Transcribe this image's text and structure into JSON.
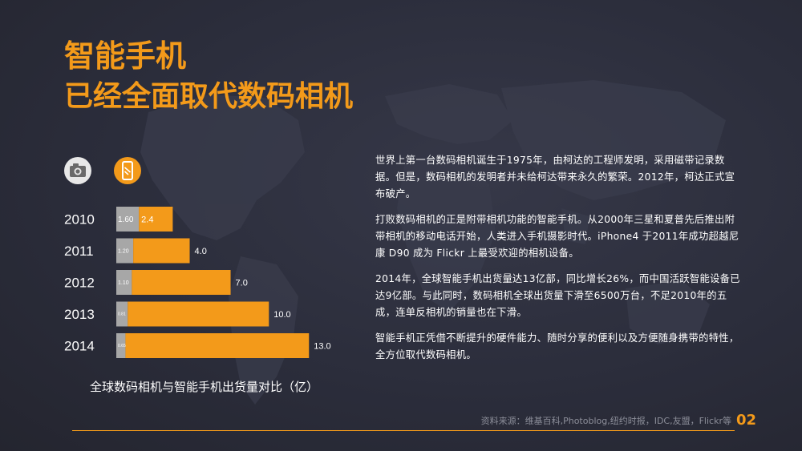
{
  "slide": {
    "title": "智能手机",
    "subtitle": "已经全面取代数码相机",
    "page_number": "02",
    "source": "资料来源：维基百科,Photoblog,纽约时报，IDC,友盟，Flickr等"
  },
  "icons": {
    "camera": "camera-icon",
    "smartphone": "smartphone-icon"
  },
  "colors": {
    "accent": "#f39a1a",
    "camera_bar": "#a7a7a7",
    "background": "#2b2d3b"
  },
  "paragraphs": [
    "世界上第一台数码相机诞生于1975年，由柯达的工程师发明，采用磁带记录数据。但是，数码相机的发明者并未给柯达带来永久的繁荣。2012年，柯达正式宣布破产。",
    "打败数码相机的正是附带相机功能的智能手机。从2000年三星和夏普先后推出附带相机的移动电话开始，人类进入手机摄影时代。iPhone4 于2011年成功超越尼康 D90 成为 Flickr 上最受欢迎的相机设备。",
    "2014年，全球智能手机出货量达13亿部，同比增长26%，而中国活跃智能设备已达9亿部。与此同时，数码相机全球出货量下滑至6500万台，不足2010年的五成，连单反相机的销量也在下滑。",
    "智能手机正凭借不断提升的硬件能力、随时分享的便利以及方便随身携带的特性，全方位取代数码相机。"
  ],
  "chart_data": {
    "type": "bar",
    "orientation": "horizontal",
    "stacked": true,
    "title": "全球数码相机与智能手机出货量对比（亿）",
    "categories": [
      "2010",
      "2011",
      "2012",
      "2013",
      "2014"
    ],
    "series": [
      {
        "name": "camera",
        "values": [
          1.6,
          1.2,
          1.1,
          0.81,
          0.65
        ],
        "labels": [
          "1.60",
          "1.20",
          "1.10",
          "0.81",
          "0.65"
        ]
      },
      {
        "name": "smartphone",
        "values": [
          2.4,
          4.0,
          7.0,
          10.0,
          13.0
        ],
        "labels": [
          "2.4",
          "4.0",
          "7.0",
          "10.0",
          "13.0"
        ]
      }
    ],
    "legend_placement": "top-left (icons)",
    "grid": false
  }
}
